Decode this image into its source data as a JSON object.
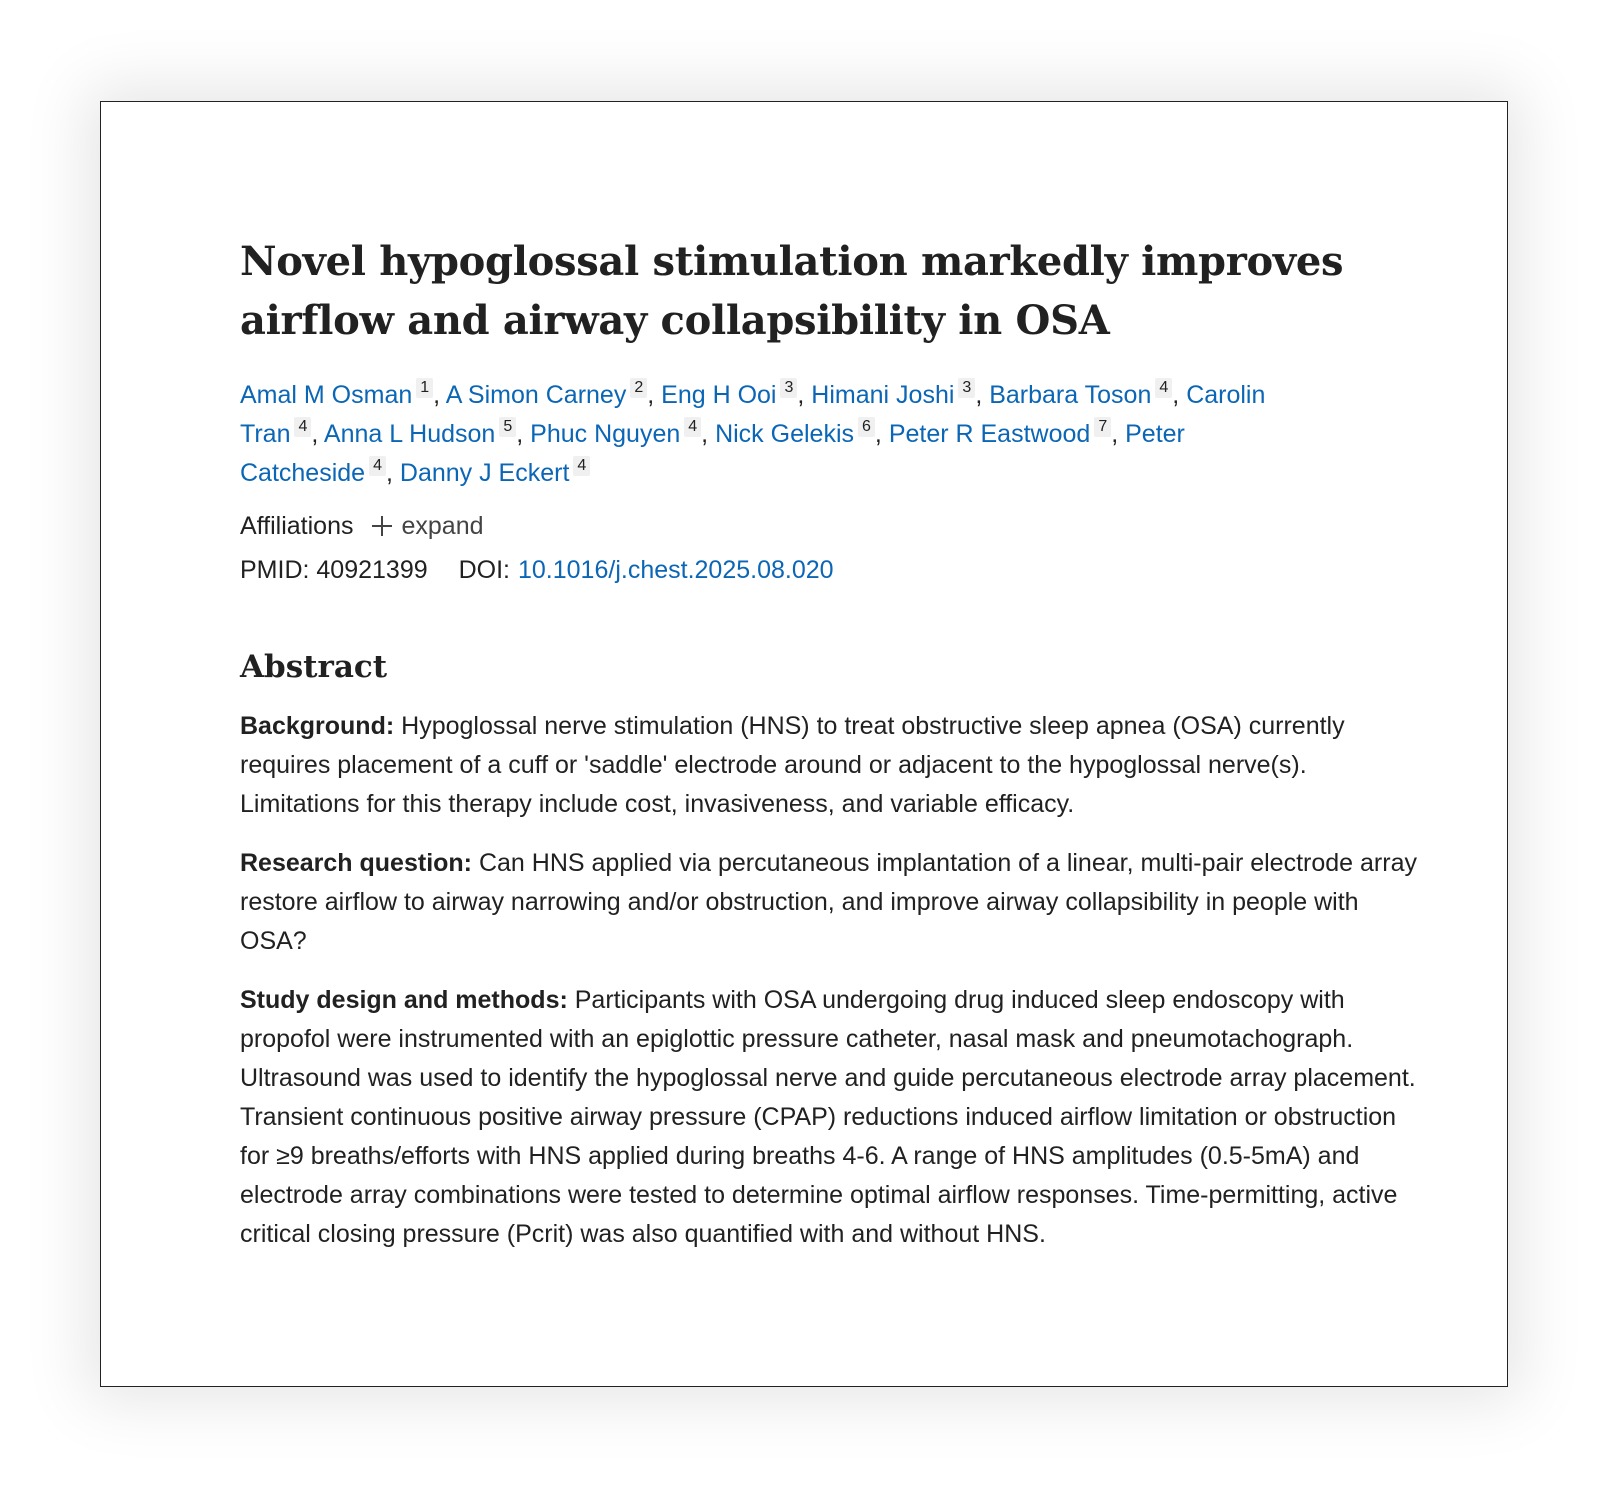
{
  "article": {
    "title": "Novel hypoglossal stimulation markedly improves airflow and airway collapsibility in OSA",
    "authors": [
      {
        "name": "Amal M Osman",
        "aff": "1"
      },
      {
        "name": "A Simon Carney",
        "aff": "2"
      },
      {
        "name": "Eng H Ooi",
        "aff": "3"
      },
      {
        "name": "Himani Joshi",
        "aff": "3"
      },
      {
        "name": "Barbara Toson",
        "aff": "4"
      },
      {
        "name": "Carolin Tran",
        "aff": "4"
      },
      {
        "name": "Anna L Hudson",
        "aff": "5"
      },
      {
        "name": "Phuc Nguyen",
        "aff": "4"
      },
      {
        "name": "Nick Gelekis",
        "aff": "6"
      },
      {
        "name": "Peter R Eastwood",
        "aff": "7"
      },
      {
        "name": "Peter Catcheside",
        "aff": "4"
      },
      {
        "name": "Danny J Eckert",
        "aff": "4"
      }
    ],
    "affiliations_label": "Affiliations",
    "expand_label": "expand",
    "pmid_label": "PMID:",
    "pmid": "40921399",
    "doi_label": "DOI:",
    "doi": "10.1016/j.chest.2025.08.020"
  },
  "abstract": {
    "heading": "Abstract",
    "sections": [
      {
        "label": "Background:",
        "text": "Hypoglossal nerve stimulation (HNS) to treat obstructive sleep apnea (OSA) currently requires placement of a cuff or 'saddle' electrode around or adjacent to the hypoglossal nerve(s). Limitations for this therapy include cost, invasiveness, and variable efficacy."
      },
      {
        "label": "Research question:",
        "text": "Can HNS applied via percutaneous implantation of a linear, multi-pair electrode array restore airflow to airway narrowing and/or obstruction, and improve airway collapsibility in people with OSA?"
      },
      {
        "label": "Study design and methods:",
        "text": "Participants with OSA undergoing drug induced sleep endoscopy with propofol were instrumented with an epiglottic pressure catheter, nasal mask and pneumotachograph. Ultrasound was used to identify the hypoglossal nerve and guide percutaneous electrode array placement. Transient continuous positive airway pressure (CPAP) reductions induced airflow limitation or obstruction for ≥9 breaths/efforts with HNS applied during breaths 4-6. A range of HNS amplitudes (0.5-5mA) and electrode array combinations were tested to determine optimal airflow responses. Time-permitting, active critical closing pressure (Pcrit) was also quantified with and without HNS."
      }
    ]
  },
  "colors": {
    "link": "#0b66b6",
    "text": "#212121"
  }
}
